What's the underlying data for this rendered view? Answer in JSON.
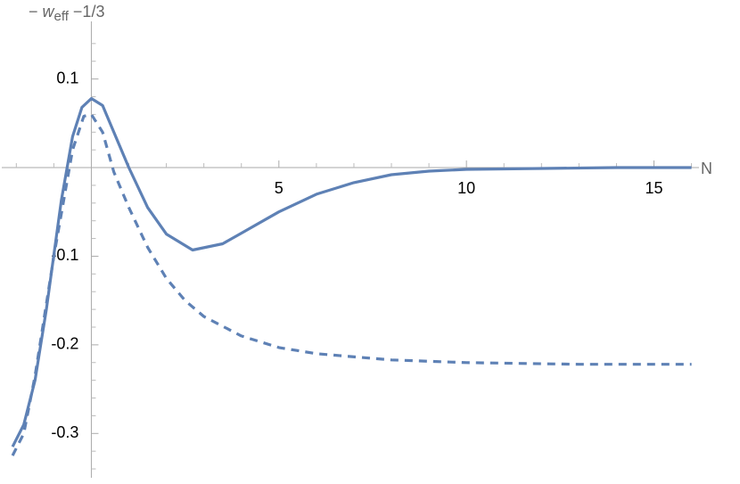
{
  "chart_data": {
    "type": "line",
    "x_label": "N",
    "y_label": {
      "prefix": "− ",
      "var": "w",
      "sub": "eff",
      "suffix": " −1/3"
    },
    "xlim": [
      -2.15,
      16.2
    ],
    "ylim": [
      -0.35,
      0.165
    ],
    "xticks": [
      5,
      10,
      15
    ],
    "yticks": [
      -0.3,
      -0.2,
      -0.1,
      0.1
    ],
    "xminorticks": [
      -2,
      -1,
      1,
      2,
      3,
      4,
      6,
      7,
      8,
      9,
      11,
      12,
      13,
      14,
      16
    ],
    "yminorticks": [
      -0.34,
      -0.32,
      -0.28,
      -0.26,
      -0.24,
      -0.22,
      -0.18,
      -0.16,
      -0.14,
      -0.12,
      -0.08,
      -0.06,
      -0.04,
      -0.02,
      0.02,
      0.04,
      0.06,
      0.08,
      0.12,
      0.14
    ],
    "series": [
      {
        "color": "#5e81b5",
        "dashed": false,
        "x": [
          -2.1,
          -1.8,
          -1.5,
          -1.2,
          -0.8,
          -0.5,
          -0.25,
          0,
          0.3,
          0.6,
          1,
          1.5,
          2,
          2.7,
          3.5,
          4,
          5,
          6,
          7,
          8,
          9,
          10,
          12,
          14,
          16
        ],
        "values": [
          -0.315,
          -0.29,
          -0.24,
          -0.16,
          -0.037,
          0.035,
          0.068,
          0.078,
          0.07,
          0.04,
          0.0,
          -0.045,
          -0.075,
          -0.093,
          -0.086,
          -0.074,
          -0.05,
          -0.03,
          -0.017,
          -0.008,
          -0.004,
          -0.002,
          -0.001,
          0,
          0
        ]
      },
      {
        "color": "#5e81b5",
        "dashed": true,
        "x": [
          -2.1,
          -1.8,
          -1.5,
          -1.0,
          -0.5,
          -0.2,
          0,
          0.3,
          0.6,
          1,
          1.5,
          2,
          2.5,
          3,
          4,
          5,
          6,
          8,
          10,
          13,
          16
        ],
        "values": [
          -0.325,
          -0.3,
          -0.235,
          -0.1,
          0.02,
          0.058,
          0.06,
          0.04,
          -0.005,
          -0.045,
          -0.09,
          -0.125,
          -0.15,
          -0.168,
          -0.19,
          -0.203,
          -0.21,
          -0.217,
          -0.22,
          -0.222,
          -0.222
        ]
      }
    ]
  }
}
